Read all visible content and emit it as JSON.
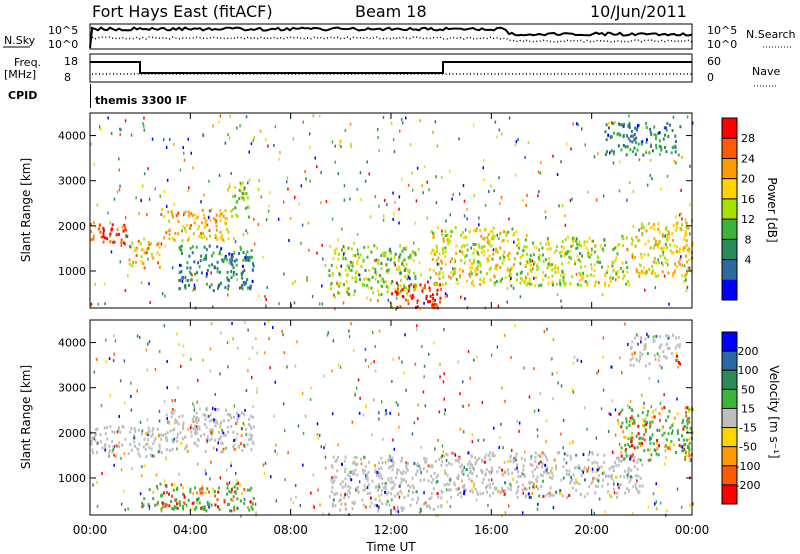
{
  "header": {
    "station": "Fort Hays East (fitACF)",
    "beam": "Beam 18",
    "date": "10/Jun/2011"
  },
  "top_panels": {
    "nsky_label": "N.Sky",
    "nsky_ticks": [
      "10^5",
      "10^0"
    ],
    "nsearch_label": "N.Search",
    "nsearch_ticks": [
      "10^5",
      "10^0"
    ],
    "freq_label": "Freq.",
    "freq_unit": "[MHz]",
    "freq_ticks": [
      "18",
      "8"
    ],
    "nave_label": "Nave",
    "nave_ticks": [
      "60",
      "0"
    ],
    "cpid_label": "CPID",
    "cpid_value": "themis 3300 IF"
  },
  "chart_data": [
    {
      "type": "heatmap",
      "name": "power",
      "ylabel": "Slant Range [km]",
      "xlabel": "Time UT",
      "x_range_hours": [
        0,
        24
      ],
      "ylim": [
        180,
        4500
      ],
      "yticks": [
        "1000",
        "2000",
        "3000",
        "4000"
      ],
      "colorbar": {
        "label": "Power [dB]",
        "ticks": [
          "28",
          "24",
          "20",
          "16",
          "12",
          "8",
          "4"
        ],
        "colors": [
          "#ff0000",
          "#ff5a00",
          "#ff9a00",
          "#ffd400",
          "#a8e000",
          "#3cb43c",
          "#2a8a5a",
          "#2a6aa0",
          "#0000ff"
        ]
      },
      "echo_regions": [
        {
          "t0": 0.0,
          "t1": 1.5,
          "r0": 1600,
          "r1": 2100,
          "level": 26
        },
        {
          "t0": 1.5,
          "t1": 2.8,
          "r0": 1100,
          "r1": 1700,
          "level": 20
        },
        {
          "t0": 2.8,
          "t1": 5.5,
          "r0": 1700,
          "r1": 2400,
          "level": 20
        },
        {
          "t0": 5.5,
          "t1": 6.3,
          "r0": 2200,
          "r1": 3000,
          "level": 14
        },
        {
          "t0": 3.5,
          "t1": 6.5,
          "r0": 600,
          "r1": 1600,
          "level": 8
        },
        {
          "t0": 9.5,
          "t1": 13.0,
          "r0": 500,
          "r1": 1600,
          "level": 14
        },
        {
          "t0": 12.0,
          "t1": 14.0,
          "r0": 200,
          "r1": 800,
          "level": 27
        },
        {
          "t0": 13.5,
          "t1": 17.0,
          "r0": 700,
          "r1": 2000,
          "level": 17
        },
        {
          "t0": 17.0,
          "t1": 21.5,
          "r0": 700,
          "r1": 1800,
          "level": 15
        },
        {
          "t0": 21.5,
          "t1": 24.0,
          "r0": 900,
          "r1": 2100,
          "level": 18
        },
        {
          "t0": 20.5,
          "t1": 23.5,
          "r0": 3600,
          "r1": 4300,
          "level": 8
        }
      ]
    },
    {
      "type": "heatmap",
      "name": "velocity",
      "ylabel": "Slant Range [km]",
      "xlabel": "Time UT",
      "x_range_hours": [
        0,
        24
      ],
      "ylim": [
        180,
        4500
      ],
      "yticks": [
        "1000",
        "2000",
        "3000",
        "4000"
      ],
      "colorbar": {
        "label": "Velocity [m s⁻¹]",
        "ticks": [
          "200",
          "100",
          "50",
          "15",
          "-15",
          "-50",
          "-100",
          "-200"
        ],
        "colors": [
          "#0000ff",
          "#2a6aa0",
          "#2a8a5a",
          "#3cb43c",
          "#bebebe",
          "#ffd400",
          "#ff9a00",
          "#ff5a00",
          "#ff0000"
        ]
      },
      "echo_regions": [
        {
          "t0": 0.0,
          "t1": 3.0,
          "r0": 1500,
          "r1": 2200,
          "level": 0
        },
        {
          "t0": 3.0,
          "t1": 6.5,
          "r0": 1600,
          "r1": 2600,
          "level": 0
        },
        {
          "t0": 9.5,
          "t1": 14.0,
          "r0": 300,
          "r1": 1500,
          "level": 0
        },
        {
          "t0": 14.0,
          "t1": 22.0,
          "r0": 600,
          "r1": 1600,
          "level": 0
        },
        {
          "t0": 21.0,
          "t1": 24.0,
          "r0": 1400,
          "r1": 2600,
          "level": 30
        },
        {
          "t0": 2.0,
          "t1": 6.5,
          "r0": 300,
          "r1": 900,
          "level": 40
        },
        {
          "t0": 21.5,
          "t1": 23.5,
          "r0": 3500,
          "r1": 4200,
          "level": 0
        }
      ]
    }
  ],
  "x_axis": {
    "ticks": [
      "00:00",
      "04:00",
      "08:00",
      "12:00",
      "16:00",
      "20:00",
      "00:00"
    ],
    "label": "Time UT"
  }
}
